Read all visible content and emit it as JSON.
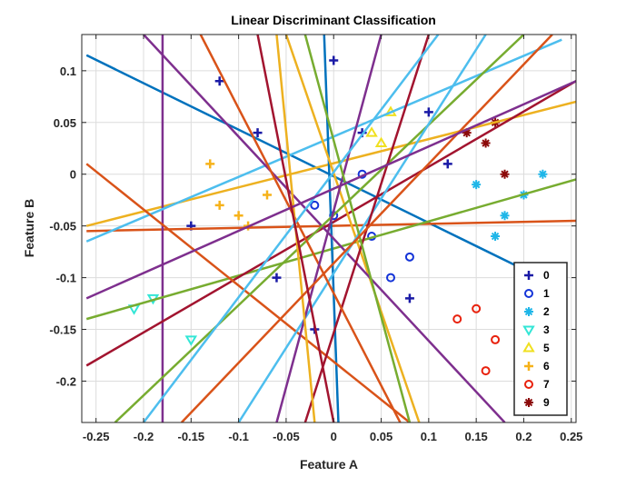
{
  "chart_data": {
    "type": "scatter",
    "title": "Linear Discriminant Classification",
    "xlabel": "Feature A",
    "ylabel": "Feature B",
    "xlim": [
      -0.265,
      0.255
    ],
    "ylim": [
      -0.24,
      0.135
    ],
    "grid": true,
    "legend_position": "bottom-right",
    "x_ticks": [
      -0.25,
      -0.2,
      -0.15,
      -0.1,
      -0.05,
      0,
      0.05,
      0.1,
      0.15,
      0.2,
      0.25
    ],
    "x_tick_labels": [
      "-0.25",
      "-0.2",
      "-0.15",
      "-0.1",
      "-0.05",
      "0",
      "0.05",
      "0.1",
      "0.15",
      "0.2",
      "0.25"
    ],
    "y_ticks": [
      0.1,
      0.05,
      0,
      -0.05,
      -0.1,
      -0.15,
      -0.2
    ],
    "y_tick_labels": [
      "0.1",
      "0.05",
      "0",
      "-0.05",
      "-0.1",
      "-0.15",
      "-0.2"
    ],
    "series": [
      {
        "name": "0",
        "marker": "plus",
        "color": "#1a1aa6"
      },
      {
        "name": "1",
        "marker": "circle",
        "color": "#1434d8"
      },
      {
        "name": "2",
        "marker": "asterisk",
        "color": "#1fb6e8"
      },
      {
        "name": "3",
        "marker": "triangle-down",
        "color": "#33e6d6"
      },
      {
        "name": "5",
        "marker": "triangle-up",
        "color": "#f0e020"
      },
      {
        "name": "6",
        "marker": "plus",
        "color": "#f6b21a"
      },
      {
        "name": "7",
        "marker": "circle",
        "color": "#e8200c"
      },
      {
        "name": "9",
        "marker": "asterisk",
        "color": "#8c0a0a"
      }
    ],
    "clusters": [
      {
        "series": "0",
        "points": [
          [
            -0.06,
            -0.1
          ],
          [
            0.03,
            0.04
          ],
          [
            -0.12,
            0.09
          ],
          [
            0.1,
            0.06
          ],
          [
            -0.02,
            -0.15
          ],
          [
            0.08,
            -0.12
          ],
          [
            -0.15,
            -0.05
          ],
          [
            0.0,
            0.11
          ],
          [
            0.12,
            0.01
          ],
          [
            -0.08,
            0.04
          ]
        ]
      },
      {
        "series": "1",
        "points": [
          [
            0.0,
            -0.04
          ],
          [
            0.04,
            -0.06
          ],
          [
            0.08,
            -0.08
          ],
          [
            -0.02,
            -0.03
          ],
          [
            0.03,
            0.0
          ],
          [
            0.06,
            -0.1
          ]
        ]
      },
      {
        "series": "2",
        "points": [
          [
            0.15,
            -0.01
          ],
          [
            0.18,
            -0.04
          ],
          [
            0.22,
            0.0
          ],
          [
            0.17,
            -0.06
          ],
          [
            0.2,
            -0.02
          ]
        ]
      },
      {
        "series": "3",
        "points": [
          [
            -0.21,
            -0.13
          ],
          [
            -0.15,
            -0.16
          ],
          [
            -0.19,
            -0.12
          ]
        ]
      },
      {
        "series": "5",
        "points": [
          [
            0.04,
            0.04
          ],
          [
            0.06,
            0.06
          ],
          [
            0.05,
            0.03
          ]
        ]
      },
      {
        "series": "6",
        "points": [
          [
            -0.1,
            -0.04
          ],
          [
            -0.13,
            0.01
          ],
          [
            -0.07,
            -0.02
          ],
          [
            -0.09,
            -0.05
          ],
          [
            -0.12,
            -0.03
          ]
        ]
      },
      {
        "series": "7",
        "points": [
          [
            0.13,
            -0.14
          ],
          [
            0.15,
            -0.13
          ],
          [
            0.17,
            -0.16
          ],
          [
            0.16,
            -0.19
          ]
        ]
      },
      {
        "series": "9",
        "points": [
          [
            0.14,
            0.04
          ],
          [
            0.17,
            0.05
          ],
          [
            0.18,
            0.0
          ],
          [
            0.16,
            0.03
          ]
        ]
      }
    ],
    "boundary_lines": [
      {
        "color": "#0072bd",
        "points": [
          [
            -0.26,
            0.115
          ],
          [
            0.24,
            -0.11
          ]
        ]
      },
      {
        "color": "#d95319",
        "points": [
          [
            -0.26,
            -0.055
          ],
          [
            0.255,
            -0.045
          ]
        ]
      },
      {
        "color": "#edb120",
        "points": [
          [
            -0.26,
            -0.05
          ],
          [
            0.255,
            0.07
          ]
        ]
      },
      {
        "color": "#7e2f8e",
        "points": [
          [
            -0.18,
            0.135
          ],
          [
            -0.18,
            -0.24
          ]
        ]
      },
      {
        "color": "#77ac30",
        "points": [
          [
            -0.26,
            -0.14
          ],
          [
            0.255,
            -0.005
          ]
        ]
      },
      {
        "color": "#4dbeee",
        "points": [
          [
            -0.26,
            -0.065
          ],
          [
            0.24,
            0.13
          ]
        ]
      },
      {
        "color": "#a2142f",
        "points": [
          [
            -0.26,
            -0.185
          ],
          [
            0.255,
            0.09
          ]
        ]
      },
      {
        "color": "#0072bd",
        "points": [
          [
            -0.01,
            0.135
          ],
          [
            0.005,
            -0.24
          ]
        ]
      },
      {
        "color": "#d95319",
        "points": [
          [
            -0.26,
            0.01
          ],
          [
            0.08,
            -0.24
          ]
        ]
      },
      {
        "color": "#edb120",
        "points": [
          [
            -0.05,
            0.135
          ],
          [
            0.09,
            -0.24
          ]
        ]
      },
      {
        "color": "#7e2f8e",
        "points": [
          [
            -0.2,
            0.135
          ],
          [
            0.18,
            -0.24
          ]
        ]
      },
      {
        "color": "#77ac30",
        "points": [
          [
            0.2,
            0.135
          ],
          [
            -0.23,
            -0.24
          ]
        ]
      },
      {
        "color": "#4dbeee",
        "points": [
          [
            0.16,
            0.135
          ],
          [
            -0.1,
            -0.24
          ]
        ]
      },
      {
        "color": "#a2142f",
        "points": [
          [
            0.1,
            0.135
          ],
          [
            -0.03,
            -0.24
          ]
        ]
      },
      {
        "color": "#d95319",
        "points": [
          [
            -0.14,
            0.135
          ],
          [
            0.07,
            -0.24
          ]
        ]
      },
      {
        "color": "#7e2f8e",
        "points": [
          [
            0.05,
            0.135
          ],
          [
            -0.06,
            -0.24
          ]
        ]
      },
      {
        "color": "#edb120",
        "points": [
          [
            -0.06,
            0.135
          ],
          [
            -0.02,
            -0.24
          ]
        ]
      },
      {
        "color": "#77ac30",
        "points": [
          [
            -0.03,
            0.135
          ],
          [
            0.08,
            -0.24
          ]
        ]
      },
      {
        "color": "#4dbeee",
        "points": [
          [
            0.11,
            0.135
          ],
          [
            -0.2,
            -0.24
          ]
        ]
      },
      {
        "color": "#d95319",
        "points": [
          [
            0.23,
            0.135
          ],
          [
            -0.16,
            -0.24
          ]
        ]
      },
      {
        "color": "#7e2f8e",
        "points": [
          [
            0.255,
            0.09
          ],
          [
            -0.26,
            -0.12
          ]
        ]
      },
      {
        "color": "#a2142f",
        "points": [
          [
            -0.08,
            0.135
          ],
          [
            0.0,
            -0.24
          ]
        ]
      }
    ]
  }
}
